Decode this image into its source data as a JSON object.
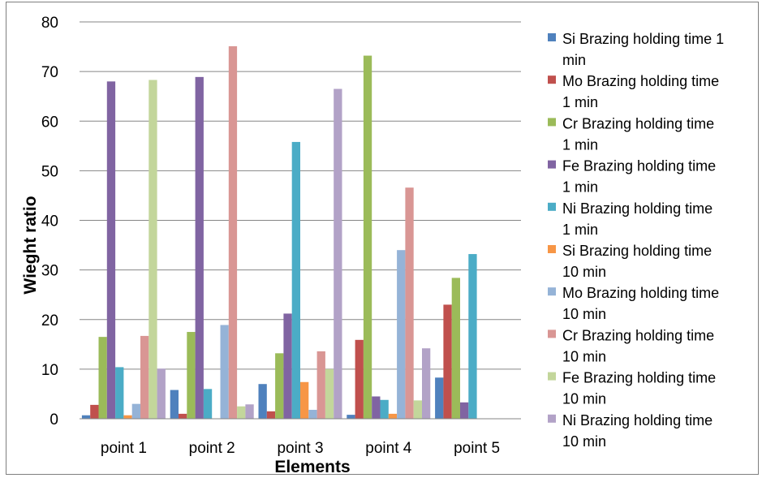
{
  "chart_data": {
    "type": "bar",
    "title": "",
    "xlabel": "Elements",
    "ylabel": "Wieght ratio",
    "ylim": [
      0,
      80
    ],
    "yticks": [
      0,
      10,
      20,
      30,
      40,
      50,
      60,
      70,
      80
    ],
    "grid": true,
    "legend_position": "right",
    "categories": [
      "point 1",
      "point 2",
      "point 3",
      "point 4",
      "point 5"
    ],
    "series": [
      {
        "name": "Si Brazing holding time 1 min",
        "color": "#4F81BD",
        "values": [
          0.7,
          5.8,
          7.0,
          0.8,
          8.3
        ]
      },
      {
        "name": "Mo Brazing holding time 1 min",
        "color": "#C0504D",
        "values": [
          2.8,
          1.0,
          1.5,
          15.9,
          23.0
        ]
      },
      {
        "name": "Cr Brazing holding time 1 min",
        "color": "#9BBB59",
        "values": [
          16.5,
          17.5,
          13.2,
          73.2,
          28.4
        ]
      },
      {
        "name": "Fe Brazing holding time 1 min",
        "color": "#8064A2",
        "values": [
          68.0,
          68.9,
          21.2,
          4.5,
          3.3
        ]
      },
      {
        "name": "Ni Brazing holding time 1 min",
        "color": "#4BACC6",
        "values": [
          10.4,
          6.0,
          55.8,
          3.8,
          33.2
        ]
      },
      {
        "name": "Si Brazing holding time 10 min",
        "color": "#F79646",
        "values": [
          0.7,
          0,
          7.4,
          1.0,
          0
        ]
      },
      {
        "name": "Mo Brazing holding time 10 min",
        "color": "#95B3D7",
        "values": [
          3.0,
          18.9,
          1.8,
          34.0,
          0
        ]
      },
      {
        "name": "Cr Brazing holding time 10 min",
        "color": "#D99694",
        "values": [
          16.7,
          75.1,
          13.6,
          46.6,
          0
        ]
      },
      {
        "name": "Fe Brazing holding time 10 min",
        "color": "#C3D69B",
        "values": [
          68.3,
          2.5,
          10.0,
          3.7,
          0
        ]
      },
      {
        "name": "Ni Brazing holding time 10 min",
        "color": "#B2A2C7",
        "values": [
          10.1,
          2.9,
          66.5,
          14.2,
          0
        ]
      }
    ],
    "legend_lines": [
      [
        "Si Brazing holding time 1",
        "min"
      ],
      [
        "Mo Brazing holding time",
        "1 min"
      ],
      [
        "Cr Brazing holding time",
        "1 min"
      ],
      [
        "Fe Brazing holding time",
        "1 min"
      ],
      [
        "Ni Brazing holding time",
        "1 min"
      ],
      [
        "Si Brazing holding time",
        "10 min"
      ],
      [
        "Mo Brazing holding time",
        "10 min"
      ],
      [
        "Cr Brazing holding time",
        "10 min"
      ],
      [
        "Fe Brazing holding time",
        "10 min"
      ],
      [
        "Ni Brazing holding time",
        "10 min"
      ]
    ]
  }
}
